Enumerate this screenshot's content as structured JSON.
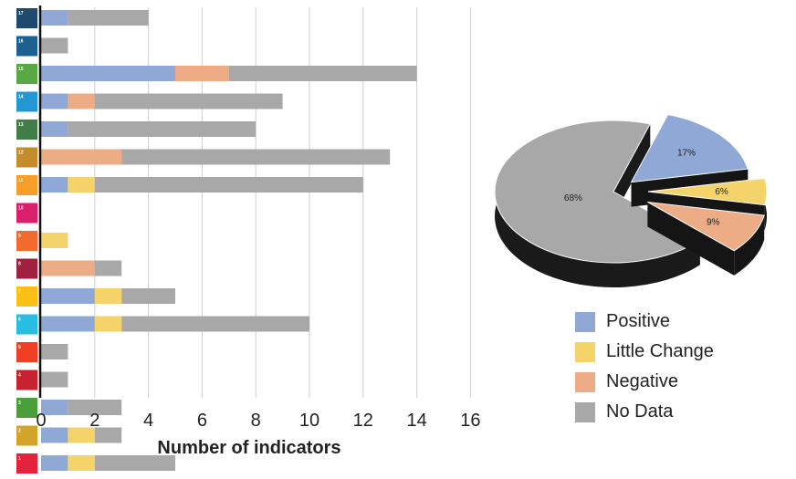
{
  "chart_data": [
    {
      "type": "bar",
      "orientation": "horizontal",
      "stacked": true,
      "xlabel": "Number of indicators",
      "xlim": [
        0,
        16
      ],
      "xticks": [
        0,
        2,
        4,
        6,
        8,
        10,
        12,
        14,
        16
      ],
      "grid": true,
      "categories": [
        "17",
        "16",
        "15",
        "14",
        "13",
        "12",
        "11",
        "10",
        "9",
        "8",
        "7",
        "6",
        "5",
        "4",
        "3",
        "2",
        "1"
      ],
      "series": [
        {
          "name": "Positive",
          "color": "#8fa8d6",
          "values": [
            1,
            0,
            5,
            1,
            1,
            0,
            1,
            0,
            0,
            0,
            2,
            2,
            0,
            0,
            1,
            1,
            1
          ]
        },
        {
          "name": "Little Change",
          "color": "#f5d36b",
          "values": [
            0,
            0,
            0,
            0,
            0,
            0,
            1,
            0,
            1,
            0,
            1,
            1,
            0,
            0,
            0,
            1,
            1
          ]
        },
        {
          "name": "Negative",
          "color": "#ecac86",
          "values": [
            0,
            0,
            2,
            1,
            0,
            3,
            0,
            0,
            0,
            2,
            0,
            0,
            0,
            0,
            0,
            0,
            0
          ]
        },
        {
          "name": "No Data",
          "color": "#a8a8a8",
          "values": [
            3,
            1,
            7,
            7,
            7,
            10,
            10,
            0,
            0,
            1,
            2,
            7,
            1,
            1,
            2,
            1,
            3
          ]
        }
      ],
      "category_icon_colors": [
        "#1e4a6e",
        "#1d5f8f",
        "#58a845",
        "#2297d4",
        "#417e47",
        "#c48c2a",
        "#f69f28",
        "#dc1f6c",
        "#f26a2e",
        "#a0203f",
        "#fbbf16",
        "#28bde2",
        "#ef4026",
        "#c5212f",
        "#4c9e3b",
        "#d4a32a",
        "#e5223c"
      ]
    },
    {
      "type": "pie",
      "style": "3d-exploded",
      "labels": [
        "Positive",
        "Little Change",
        "Negative",
        "No Data"
      ],
      "values": [
        17,
        6,
        9,
        68
      ],
      "value_labels": [
        "17%",
        "6%",
        "9%",
        "68%"
      ],
      "colors": [
        "#8fa8d6",
        "#f5d36b",
        "#ecac86",
        "#a8a8a8"
      ],
      "legend_placement": "bottom-right"
    }
  ],
  "legend": [
    {
      "label": "Positive",
      "color": "#8fa8d6"
    },
    {
      "label": "Little Change",
      "color": "#f5d36b"
    },
    {
      "label": "Negative",
      "color": "#ecac86"
    },
    {
      "label": "No Data",
      "color": "#a8a8a8"
    }
  ]
}
